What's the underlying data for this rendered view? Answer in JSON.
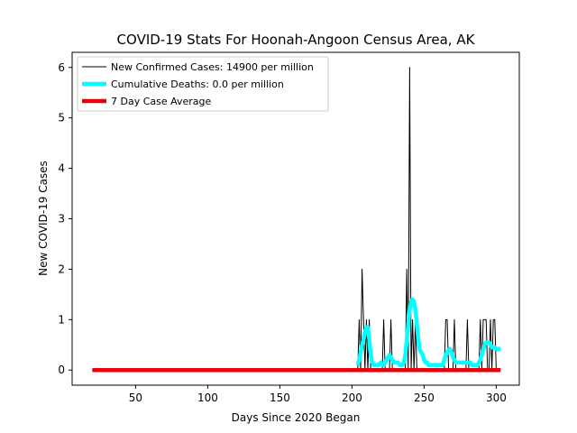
{
  "chart_data": {
    "type": "line",
    "title": "COVID-19 Stats For Hoonah-Angoon Census Area, AK",
    "xlabel": "Days Since 2020 Began",
    "ylabel": "New COVID-19 Cases",
    "xlim": [
      6,
      316
    ],
    "ylim": [
      -0.3,
      6.3
    ],
    "xticks": [
      50,
      100,
      150,
      200,
      250,
      300
    ],
    "yticks": [
      0,
      1,
      2,
      3,
      4,
      5,
      6
    ],
    "legend_position": "upper-left",
    "series": [
      {
        "name": "New Confirmed Cases: 14900 per million",
        "color": "#000000",
        "x": [
          20,
          204,
          205,
          206,
          207,
          208,
          209,
          210,
          211,
          212,
          213,
          214,
          215,
          216,
          217,
          218,
          219,
          220,
          221,
          222,
          223,
          224,
          225,
          226,
          227,
          228,
          229,
          230,
          231,
          232,
          233,
          234,
          235,
          236,
          237,
          238,
          239,
          240,
          241,
          242,
          243,
          244,
          245,
          246,
          247,
          248,
          249,
          250,
          251,
          252,
          253,
          254,
          255,
          256,
          257,
          258,
          259,
          260,
          261,
          262,
          263,
          264,
          265,
          266,
          267,
          268,
          269,
          270,
          271,
          272,
          273,
          274,
          275,
          276,
          277,
          278,
          279,
          280,
          281,
          282,
          283,
          284,
          285,
          286,
          287,
          288,
          289,
          290,
          291,
          292,
          293,
          294,
          295,
          296,
          297,
          298,
          299,
          300,
          301,
          302,
          303
        ],
        "y": [
          0,
          0,
          1,
          0,
          2,
          1,
          0,
          1,
          0,
          1,
          0,
          0,
          0,
          0,
          0,
          0,
          0,
          0,
          0,
          1,
          0,
          0,
          0,
          0,
          1,
          0,
          0,
          0,
          0,
          0,
          0,
          0,
          0,
          0,
          0,
          2,
          0,
          6,
          0,
          1,
          0,
          1,
          0,
          0,
          0,
          0,
          0,
          0,
          0,
          0,
          0,
          0,
          0,
          0,
          0,
          0,
          0,
          0,
          0,
          0,
          0,
          0,
          1,
          1,
          0,
          0,
          0,
          0,
          1,
          0,
          0,
          0,
          0,
          0,
          0,
          0,
          0,
          1,
          0,
          0,
          0,
          0,
          0,
          0,
          0,
          0,
          1,
          0,
          1,
          1,
          1,
          0,
          0,
          1,
          0,
          1,
          1,
          0,
          0,
          0,
          0
        ]
      },
      {
        "name": "Cumulative Deaths: 0.0 per million",
        "color": "#00ffff",
        "x": [
          204,
          205,
          206,
          207,
          208,
          209,
          210,
          211,
          212,
          213,
          214,
          215,
          216,
          217,
          218,
          219,
          220,
          221,
          222,
          223,
          224,
          225,
          226,
          227,
          228,
          229,
          230,
          231,
          232,
          233,
          234,
          235,
          236,
          237,
          238,
          239,
          240,
          241,
          242,
          243,
          244,
          245,
          246,
          247,
          248,
          249,
          250,
          251,
          252,
          253,
          254,
          255,
          256,
          257,
          258,
          259,
          260,
          261,
          262,
          263,
          264,
          265,
          266,
          267,
          268,
          269,
          270,
          271,
          272,
          273,
          274,
          275,
          276,
          277,
          278,
          279,
          280,
          281,
          282,
          283,
          284,
          285,
          286,
          287,
          288,
          289,
          290,
          291,
          292,
          293,
          294,
          295,
          296,
          297,
          298,
          299,
          300,
          301,
          302,
          303
        ],
        "y": [
          0.1,
          0.2,
          0.35,
          0.5,
          0.6,
          0.75,
          0.85,
          0.85,
          0.6,
          0.3,
          0.15,
          0.1,
          0.1,
          0.1,
          0.1,
          0.12,
          0.15,
          0.1,
          0.1,
          0.15,
          0.2,
          0.25,
          0.3,
          0.25,
          0.2,
          0.15,
          0.15,
          0.15,
          0.15,
          0.1,
          0.1,
          0.1,
          0.15,
          0.3,
          0.6,
          0.9,
          1.2,
          1.35,
          1.4,
          1.35,
          1.2,
          0.9,
          0.6,
          0.4,
          0.35,
          0.3,
          0.2,
          0.15,
          0.15,
          0.1,
          0.1,
          0.1,
          0.1,
          0.1,
          0.1,
          0.1,
          0.1,
          0.1,
          0.1,
          0.1,
          0.2,
          0.3,
          0.35,
          0.4,
          0.42,
          0.35,
          0.25,
          0.2,
          0.15,
          0.15,
          0.15,
          0.15,
          0.15,
          0.15,
          0.15,
          0.15,
          0.15,
          0.15,
          0.15,
          0.1,
          0.1,
          0.1,
          0.1,
          0.1,
          0.15,
          0.2,
          0.3,
          0.4,
          0.5,
          0.55,
          0.55,
          0.55,
          0.5,
          0.45,
          0.45,
          0.45,
          0.42,
          0.42,
          0.42,
          0.42
        ]
      },
      {
        "name": "7 Day Case Average",
        "color": "#e8000b",
        "x": [
          20,
          303
        ],
        "y": [
          0,
          0
        ]
      }
    ]
  }
}
